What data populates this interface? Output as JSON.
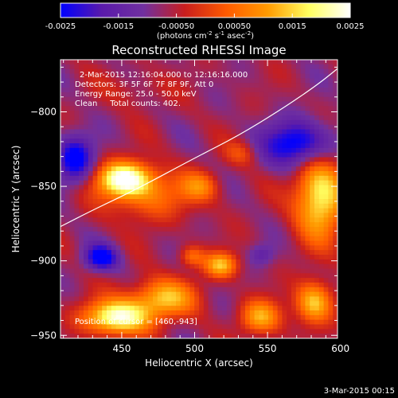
{
  "chart_data": {
    "type": "heatmap",
    "title": "Reconstructed RHESSI Image",
    "xlabel": "Heliocentric X (arcsec)",
    "ylabel": "Heliocentric Y (arcsec)",
    "xlim": [
      408,
      598
    ],
    "ylim": [
      -952,
      -765
    ],
    "x_ticks": [
      450,
      500,
      550,
      600
    ],
    "y_ticks": [
      -800,
      -850,
      -900,
      -950
    ],
    "colorbar": {
      "label": "(photons cm^-2 s^-1 asec^-2)",
      "label_parts": [
        "(photons cm",
        "-2",
        " s",
        "-1",
        " asec",
        "-2",
        ")"
      ],
      "range": [
        -0.0025,
        0.0025
      ],
      "ticks": [
        "-0.0025",
        "-0.0015",
        "-0.00050",
        "0.00050",
        "0.0015",
        "0.0025"
      ],
      "colors": [
        "#0000ff",
        "#5a1aaa",
        "#7030a0",
        "#c81e1e",
        "#ff5a00",
        "#ff9a00",
        "#ffff60",
        "#ffffff"
      ]
    },
    "background_value": -0.0007,
    "sources": [
      {
        "x": 452,
        "y": -845,
        "sx": 13,
        "sy": 8,
        "amp": 0.003
      },
      {
        "x": 468,
        "y": -856,
        "sx": 22,
        "sy": 12,
        "amp": 0.0012
      },
      {
        "x": 447,
        "y": -938,
        "sx": 16,
        "sy": 8,
        "amp": 0.003
      },
      {
        "x": 478,
        "y": -925,
        "sx": 16,
        "sy": 9,
        "amp": 0.002
      },
      {
        "x": 518,
        "y": -903,
        "sx": 8,
        "sy": 6,
        "amp": 0.002
      },
      {
        "x": 498,
        "y": -897,
        "sx": 6,
        "sy": 5,
        "amp": 0.0012
      },
      {
        "x": 586,
        "y": -856,
        "sx": 12,
        "sy": 20,
        "amp": 0.0027
      },
      {
        "x": 582,
        "y": -928,
        "sx": 9,
        "sy": 10,
        "amp": 0.0022
      },
      {
        "x": 545,
        "y": -938,
        "sx": 10,
        "sy": 8,
        "amp": 0.0018
      },
      {
        "x": 504,
        "y": -850,
        "sx": 9,
        "sy": 7,
        "amp": 0.0012
      },
      {
        "x": 532,
        "y": -828,
        "sx": 8,
        "sy": 6,
        "amp": 0.0008
      },
      {
        "x": 572,
        "y": -822,
        "sx": 17,
        "sy": 11,
        "amp": -0.0022
      },
      {
        "x": 418,
        "y": -832,
        "sx": 9,
        "sy": 11,
        "amp": -0.002
      },
      {
        "x": 436,
        "y": -898,
        "sx": 8,
        "sy": 6,
        "amp": -0.002
      },
      {
        "x": 546,
        "y": -896,
        "sx": 6,
        "sy": 5,
        "amp": -0.0008
      },
      {
        "x": 460,
        "y": -785,
        "sx": 15,
        "sy": 8,
        "amp": 0.0004
      }
    ],
    "limb_curve": [
      [
        408,
        -877
      ],
      [
        430,
        -866
      ],
      [
        460,
        -852
      ],
      [
        500,
        -831
      ],
      [
        530,
        -816
      ],
      [
        560,
        -798
      ],
      [
        584,
        -782
      ],
      [
        598,
        -771
      ]
    ],
    "annotations": {
      "time_range": "2-Mar-2015 12:16:04.000 to 12:16:16.000",
      "detectors": "Detectors: 3F 5F 6F 7F 8F 9F, Att 0",
      "energy": "Energy Range: 25.0 - 50.0 keV",
      "clean": "Clean     Total counts: 402.",
      "position": "Position of cursor = [460,-943]"
    },
    "timestamp": "3-Mar-2015 00:15"
  }
}
